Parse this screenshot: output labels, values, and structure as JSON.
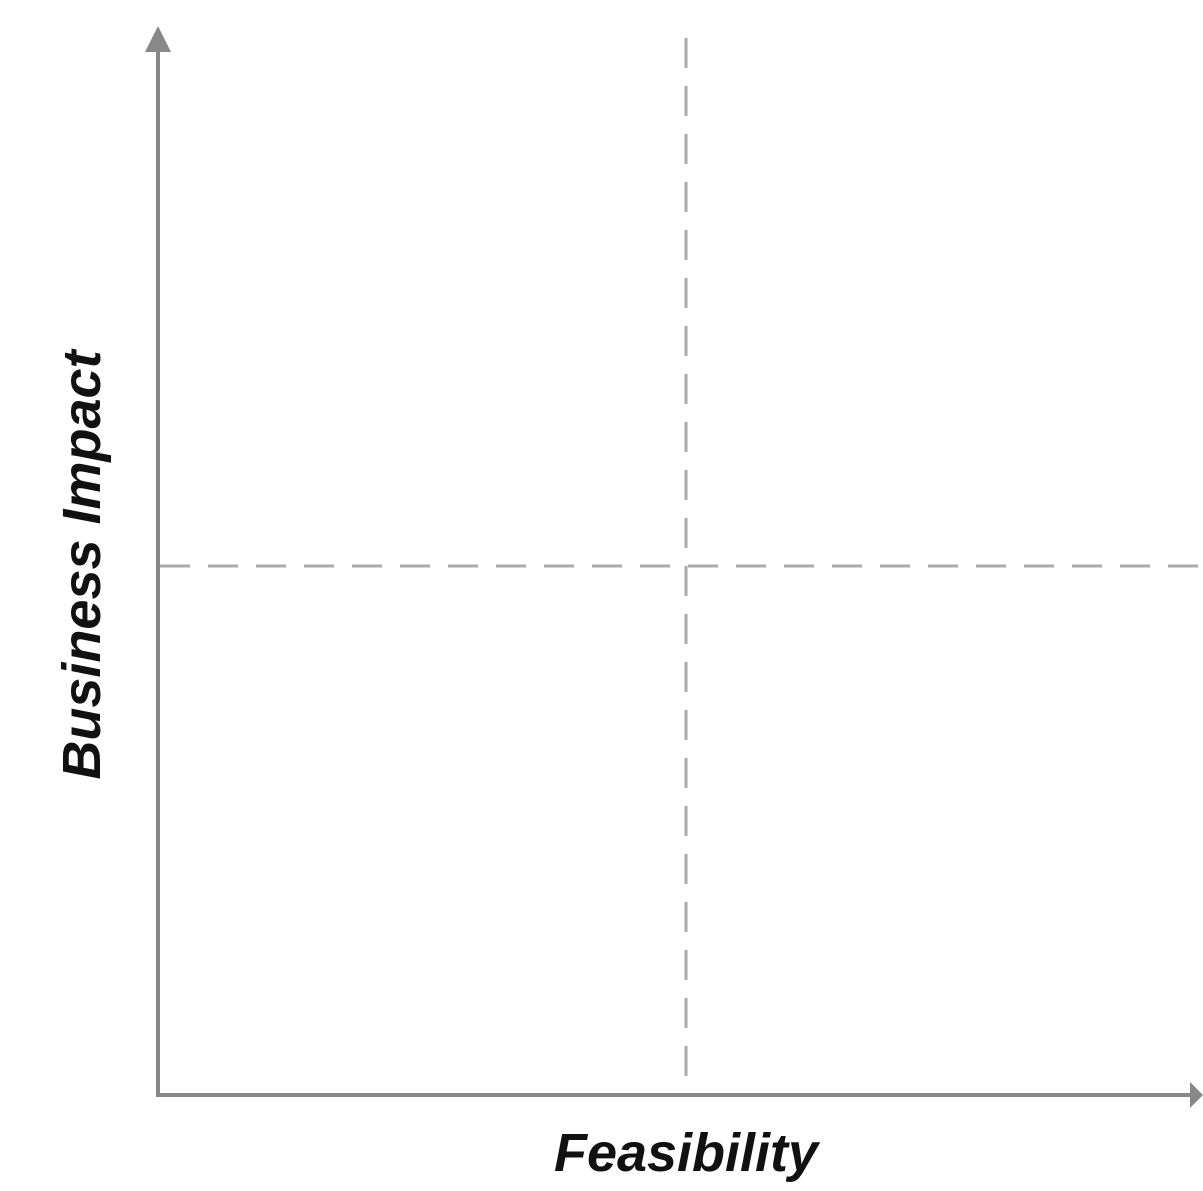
{
  "diagram": {
    "type": "quadrant-matrix",
    "x_axis_label": "Feasibility",
    "y_axis_label": "Business Impact",
    "colors": {
      "axis": "#888888",
      "divider": "#aaaaaa",
      "label": "#111111",
      "background": "#ffffff"
    },
    "divider_style": "dashed",
    "quadrants": []
  }
}
